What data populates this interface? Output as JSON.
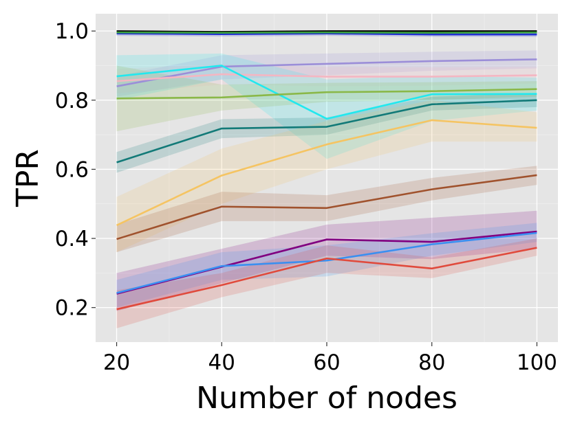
{
  "chart_data": {
    "type": "line",
    "xlabel": "Number of nodes",
    "ylabel": "TPR",
    "x": [
      20,
      40,
      60,
      80,
      100
    ],
    "xlim": [
      16,
      104
    ],
    "ylim": [
      0.1,
      1.05
    ],
    "xticks": [
      "20",
      "40",
      "60",
      "80",
      "100"
    ],
    "yticks": [
      "0.2",
      "0.4",
      "0.6",
      "0.8",
      "1.0"
    ],
    "grid": true,
    "legend": "none",
    "background": "#e5e5e5",
    "series": [
      {
        "color": "#000000",
        "values": [
          0.998,
          0.996,
          0.998,
          0.998,
          0.998
        ],
        "lower": [
          0.993,
          0.991,
          0.994,
          0.994,
          0.994
        ],
        "upper": [
          1.0,
          1.0,
          1.0,
          1.0,
          1.0
        ]
      },
      {
        "color": "#1f2fd0",
        "values": [
          0.993,
          0.991,
          0.993,
          0.99,
          0.99
        ],
        "lower": [
          0.986,
          0.984,
          0.986,
          0.983,
          0.983
        ],
        "upper": [
          1.0,
          0.998,
          1.0,
          0.997,
          0.997
        ]
      },
      {
        "color": "#3aa040",
        "values": [
          0.996,
          0.995,
          0.996,
          0.995,
          0.996
        ],
        "lower": [
          0.99,
          0.99,
          0.99,
          0.99,
          0.99
        ],
        "upper": [
          1.0,
          1.0,
          1.0,
          1.0,
          1.0
        ]
      },
      {
        "color": "#9b8ed8",
        "values": [
          0.84,
          0.897,
          0.905,
          0.913,
          0.918
        ],
        "lower": [
          0.81,
          0.86,
          0.872,
          0.885,
          0.892
        ],
        "upper": [
          0.87,
          0.93,
          0.935,
          0.94,
          0.944
        ]
      },
      {
        "color": "#f4b6c2",
        "values": [
          0.855,
          0.875,
          0.868,
          0.868,
          0.872
        ],
        "lower": [
          0.82,
          0.845,
          0.84,
          0.842,
          0.848
        ],
        "upper": [
          0.89,
          0.905,
          0.896,
          0.895,
          0.896
        ]
      },
      {
        "color": "#22e8ee",
        "values": [
          0.869,
          0.9,
          0.746,
          0.817,
          0.818
        ],
        "lower": [
          0.8,
          0.86,
          0.63,
          0.74,
          0.77
        ],
        "upper": [
          0.93,
          0.935,
          0.86,
          0.87,
          0.865
        ]
      },
      {
        "color": "#8ab848",
        "values": [
          0.805,
          0.808,
          0.823,
          0.826,
          0.832
        ],
        "lower": [
          0.71,
          0.77,
          0.795,
          0.8,
          0.81
        ],
        "upper": [
          0.9,
          0.845,
          0.85,
          0.852,
          0.855
        ]
      },
      {
        "color": "#127a78",
        "values": [
          0.62,
          0.718,
          0.723,
          0.788,
          0.8
        ],
        "lower": [
          0.59,
          0.69,
          0.7,
          0.77,
          0.78
        ],
        "upper": [
          0.65,
          0.745,
          0.75,
          0.81,
          0.82
        ]
      },
      {
        "color": "#f5c462",
        "values": [
          0.438,
          0.582,
          0.672,
          0.742,
          0.72
        ],
        "lower": [
          0.36,
          0.5,
          0.6,
          0.68,
          0.68
        ],
        "upper": [
          0.52,
          0.66,
          0.74,
          0.8,
          0.765
        ]
      },
      {
        "color": "#a0522d",
        "values": [
          0.398,
          0.492,
          0.488,
          0.542,
          0.583
        ],
        "lower": [
          0.36,
          0.45,
          0.45,
          0.51,
          0.555
        ],
        "upper": [
          0.44,
          0.535,
          0.525,
          0.575,
          0.61
        ]
      },
      {
        "color": "#800080",
        "values": [
          0.24,
          0.318,
          0.397,
          0.39,
          0.42
        ],
        "lower": [
          0.19,
          0.27,
          0.35,
          0.34,
          0.37
        ],
        "upper": [
          0.3,
          0.37,
          0.44,
          0.46,
          0.48
        ]
      },
      {
        "color": "#3a8ff0",
        "values": [
          0.242,
          0.32,
          0.336,
          0.383,
          0.416
        ],
        "lower": [
          0.2,
          0.28,
          0.29,
          0.35,
          0.39
        ],
        "upper": [
          0.28,
          0.36,
          0.38,
          0.415,
          0.445
        ]
      },
      {
        "color": "#e04a3c",
        "values": [
          0.195,
          0.265,
          0.342,
          0.313,
          0.373
        ],
        "lower": [
          0.14,
          0.23,
          0.3,
          0.285,
          0.35
        ],
        "upper": [
          0.25,
          0.3,
          0.38,
          0.345,
          0.4
        ]
      }
    ]
  }
}
